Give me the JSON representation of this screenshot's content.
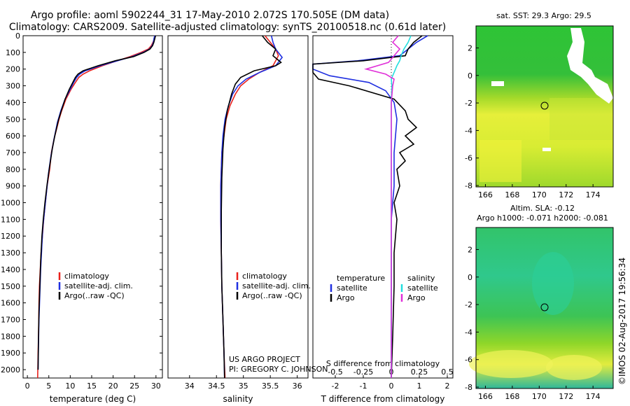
{
  "header": {
    "title_line1": "Argo profile: aoml 5902244_31 17-May-2010 2.072S 170.505E (DM data)",
    "title_line2": "Climatology: CARS2009. Satellite-adjusted climatology: synTS_20100518.nc (0.61d later)"
  },
  "colors": {
    "climatology": "#e8211c",
    "satellite": "#1f2fe0",
    "argo": "#000000",
    "sat_s": "#22dede",
    "argo_s": "#e030d8"
  },
  "chart_data": [
    {
      "type": "line",
      "xlabel": "temperature (deg C)",
      "ylim": [
        2050,
        0
      ],
      "xlim": [
        -1,
        31.5
      ],
      "xticks": [
        0,
        5,
        10,
        15,
        20,
        25,
        30
      ],
      "yticks": [
        0,
        100,
        200,
        300,
        400,
        500,
        600,
        700,
        800,
        900,
        1000,
        1100,
        1200,
        1300,
        1400,
        1500,
        1600,
        1700,
        1800,
        1900,
        2000
      ],
      "legend": [
        "climatology",
        "satellite-adj. clim.",
        "Argo(..raw -QC)"
      ],
      "series": [
        {
          "name": "climatology",
          "color": "#e8211c",
          "x": [
            29.8,
            29.6,
            29.3,
            28.9,
            28.2,
            26.5,
            24.0,
            21.0,
            17.5,
            14.5,
            13.0,
            12.0,
            11.2,
            10.2,
            9.0,
            8.0,
            7.4,
            6.8,
            6.2,
            5.6,
            5.2,
            4.6,
            4.2,
            3.8,
            3.5,
            3.2,
            3.0,
            2.8,
            2.7,
            2.6,
            2.5,
            2.4
          ],
          "y": [
            0,
            20,
            40,
            60,
            80,
            100,
            125,
            150,
            180,
            210,
            230,
            250,
            280,
            320,
            380,
            450,
            500,
            560,
            620,
            700,
            800,
            900,
            1000,
            1100,
            1200,
            1300,
            1400,
            1500,
            1600,
            1800,
            1900,
            2050
          ]
        },
        {
          "name": "satellite",
          "color": "#1f2fe0",
          "x": [
            29.7,
            29.5,
            29.4,
            29.1,
            28.5,
            27.0,
            24.5,
            21.0,
            17.0,
            13.5,
            12.2,
            11.5,
            10.8,
            10.0,
            8.8,
            7.8,
            7.0,
            6.2,
            5.5,
            4.9,
            4.4,
            4.0,
            3.6,
            3.4,
            3.1,
            2.9,
            2.7,
            2.6,
            2.5
          ],
          "y": [
            0,
            20,
            40,
            60,
            80,
            100,
            125,
            150,
            180,
            210,
            230,
            250,
            280,
            320,
            380,
            450,
            520,
            620,
            720,
            830,
            950,
            1050,
            1150,
            1250,
            1400,
            1550,
            1700,
            1850,
            2000
          ]
        },
        {
          "name": "Argo",
          "color": "#000000",
          "x": [
            29.9,
            29.7,
            29.5,
            29.2,
            28.6,
            27.2,
            24.8,
            20.5,
            16.5,
            13.0,
            11.8,
            11.2,
            10.6,
            9.8,
            8.8,
            7.9,
            7.2,
            6.4,
            5.8,
            5.2,
            4.6,
            4.1,
            3.7,
            3.4,
            3.1,
            2.9,
            2.7,
            2.6,
            2.5
          ],
          "y": [
            0,
            20,
            40,
            60,
            80,
            100,
            125,
            150,
            180,
            210,
            230,
            250,
            280,
            320,
            380,
            450,
            510,
            600,
            680,
            780,
            890,
            1000,
            1100,
            1200,
            1350,
            1500,
            1650,
            1800,
            2000
          ]
        }
      ]
    },
    {
      "type": "line",
      "xlabel": "salinity",
      "ylim": [
        2050,
        0
      ],
      "xlim": [
        33.6,
        36.2
      ],
      "xticks": [
        34,
        34.5,
        35,
        35.5,
        36
      ],
      "legend": [
        "climatology",
        "satellite-adj. clim.",
        "Argo(..raw -QC)"
      ],
      "annotation": [
        "US ARGO PROJECT",
        "PI: GREGORY C. JOHNSON"
      ],
      "series": [
        {
          "name": "climatology",
          "color": "#e8211c",
          "x": [
            35.4,
            35.5,
            35.6,
            35.65,
            35.55,
            35.3,
            35.1,
            34.95,
            34.85,
            34.75,
            34.68,
            34.64,
            34.6,
            34.58,
            34.58,
            34.59,
            34.6,
            34.62,
            34.64,
            34.66
          ],
          "y": [
            0,
            40,
            80,
            120,
            180,
            220,
            260,
            300,
            350,
            420,
            500,
            600,
            700,
            900,
            1100,
            1300,
            1500,
            1700,
            1900,
            2050
          ]
        },
        {
          "name": "satellite",
          "color": "#1f2fe0",
          "x": [
            35.52,
            35.55,
            35.6,
            35.72,
            35.6,
            35.3,
            35.05,
            34.9,
            34.8,
            34.72,
            34.66,
            34.62,
            34.6,
            34.58,
            34.58,
            34.59,
            34.6,
            34.62,
            34.64,
            34.65
          ],
          "y": [
            0,
            40,
            80,
            130,
            180,
            220,
            260,
            300,
            350,
            420,
            500,
            600,
            700,
            900,
            1100,
            1300,
            1500,
            1700,
            1900,
            2050
          ]
        },
        {
          "name": "Argo",
          "color": "#000000",
          "x": [
            35.35,
            35.45,
            35.6,
            35.55,
            35.7,
            35.6,
            35.2,
            34.95,
            34.85,
            34.78,
            34.7,
            34.65,
            34.62,
            34.6,
            34.59,
            34.59,
            34.6,
            34.62,
            34.64,
            34.65
          ],
          "y": [
            0,
            40,
            80,
            120,
            160,
            180,
            210,
            250,
            290,
            350,
            450,
            550,
            680,
            850,
            1050,
            1300,
            1500,
            1700,
            1900,
            2050
          ]
        }
      ]
    },
    {
      "type": "line",
      "xlabel": "T difference from climatology",
      "xlabel_top": "S difference from climatology",
      "ylim": [
        2050,
        0
      ],
      "xlim": [
        -2.8,
        2.2
      ],
      "xticks": [
        -2,
        -1,
        0,
        1,
        2
      ],
      "xticks_s": [
        -0.5,
        -0.25,
        0,
        0.25,
        0.5
      ],
      "legend_t": [
        "temperature",
        "satellite",
        "Argo"
      ],
      "legend_s": [
        "salinity",
        "satellite",
        "Argo"
      ],
      "series": [
        {
          "name": "T satellite",
          "color": "#1f2fe0",
          "x": [
            1.3,
            0.9,
            0.6,
            0.3,
            -1.2,
            -2.8,
            -2.8,
            -2.2,
            -0.8,
            -0.2,
            0.1,
            0.2,
            0.1,
            0.1,
            0.0,
            0.0,
            0.0,
            0.0,
            0.0,
            0.0
          ],
          "y": [
            0,
            40,
            80,
            120,
            150,
            170,
            200,
            240,
            280,
            330,
            400,
            500,
            700,
            900,
            1100,
            1300,
            1500,
            1700,
            1900,
            2050
          ]
        },
        {
          "name": "T Argo",
          "color": "#000000",
          "x": [
            1.1,
            0.8,
            0.6,
            0.5,
            -1.0,
            -2.8,
            -2.8,
            -2.6,
            -1.5,
            0.1,
            0.5,
            0.6,
            0.9,
            0.5,
            0.8,
            0.3,
            0.5,
            0.2,
            0.3,
            0.1,
            0.2,
            0.1,
            0.1,
            0.05,
            0.0
          ],
          "y": [
            0,
            40,
            80,
            120,
            150,
            170,
            220,
            260,
            300,
            380,
            450,
            500,
            550,
            600,
            650,
            700,
            750,
            800,
            900,
            1000,
            1100,
            1300,
            1500,
            1800,
            2050
          ]
        },
        {
          "name": "S satellite",
          "color": "#22dede",
          "x": [
            0.7,
            0.6,
            0.45,
            0.35,
            0.3,
            0.2,
            0.1,
            0.0,
            0.02,
            0.0,
            0.0,
            0.0,
            0.0,
            0.0
          ],
          "y": [
            0,
            40,
            80,
            120,
            150,
            180,
            220,
            260,
            300,
            400,
            600,
            900,
            1400,
            2050
          ]
        },
        {
          "name": "S Argo",
          "color": "#e030d8",
          "x": [
            0.25,
            0.05,
            0.3,
            0.1,
            -0.1,
            -0.9,
            -0.2,
            0.1,
            0.05,
            0.0,
            0.0,
            0.0
          ],
          "y": [
            0,
            40,
            80,
            120,
            160,
            200,
            230,
            260,
            300,
            400,
            700,
            2050
          ]
        }
      ]
    },
    {
      "type": "heatmap",
      "title": "sat. SST: 29.3 Argo: 29.5",
      "xticks": [
        166,
        168,
        170,
        172,
        174
      ],
      "yticks": [
        2,
        0,
        -2,
        -4,
        -6,
        -8
      ],
      "marker": {
        "lon": 170.5,
        "lat": -2.07
      }
    },
    {
      "type": "heatmap",
      "title_line1": "Altim. SLA: -0.12",
      "title_line2": "Argo h1000: -0.071 h2000: -0.081",
      "xticks": [
        166,
        168,
        170,
        172,
        174
      ],
      "yticks": [
        2,
        0,
        -2,
        -4,
        -6,
        -8
      ],
      "marker": {
        "lon": 170.5,
        "lat": -2.07
      }
    }
  ],
  "watermark": "©IMOS 02-Aug-2017 19:56:34"
}
